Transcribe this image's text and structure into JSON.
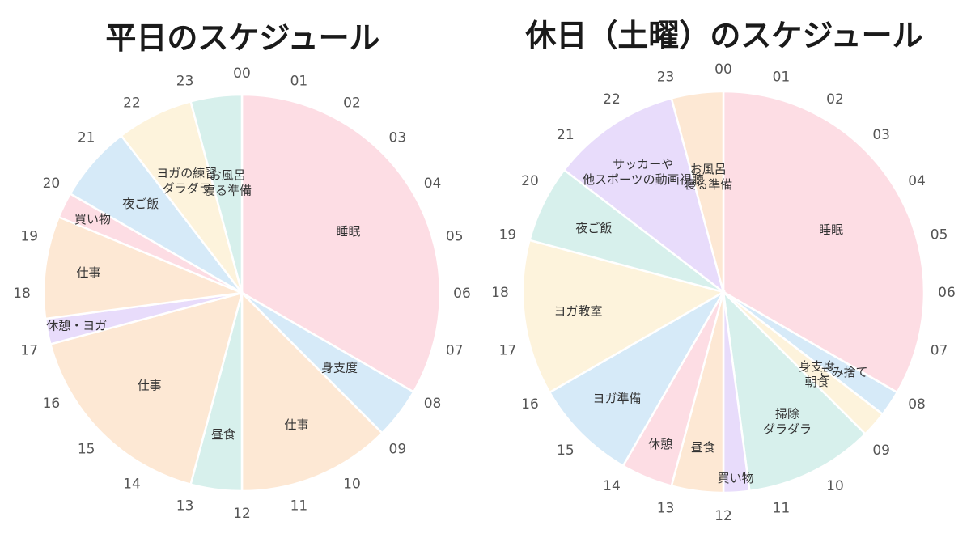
{
  "chart_data": [
    {
      "type": "pie",
      "title": "平日のスケジュール",
      "hour_labels": [
        "00",
        "01",
        "02",
        "03",
        "04",
        "05",
        "06",
        "07",
        "08",
        "09",
        "10",
        "11",
        "12",
        "13",
        "14",
        "15",
        "16",
        "17",
        "18",
        "19",
        "20",
        "21",
        "22",
        "23"
      ],
      "slices": [
        {
          "label": "睡眠",
          "start": 0,
          "end": 8,
          "color": "#fddde4"
        },
        {
          "label": "身支度",
          "start": 8,
          "end": 9,
          "color": "#d6eaf8"
        },
        {
          "label": "仕事",
          "start": 9,
          "end": 12,
          "color": "#fde8d4"
        },
        {
          "label": "昼食",
          "start": 12,
          "end": 13,
          "color": "#d7f0ec"
        },
        {
          "label": "仕事",
          "start": 13,
          "end": 17,
          "color": "#fde8d4"
        },
        {
          "label": "休憩・ヨガ",
          "start": 17,
          "end": 17.5,
          "color": "#e8dcfb"
        },
        {
          "label": "仕事",
          "start": 17.5,
          "end": 19.5,
          "color": "#fde8d4"
        },
        {
          "label": "買い物",
          "start": 19.5,
          "end": 20,
          "color": "#fddde4"
        },
        {
          "label": "夜ご飯",
          "start": 20,
          "end": 21.5,
          "color": "#d6eaf8"
        },
        {
          "label": "ヨガの練習\nダラダラ",
          "start": 21.5,
          "end": 23,
          "color": "#fdf3dc"
        },
        {
          "label": "お風呂\n寝る準備",
          "start": 23,
          "end": 24,
          "color": "#d7f0ec"
        }
      ]
    },
    {
      "type": "pie",
      "title": "休日（土曜）のスケジュール",
      "hour_labels": [
        "00",
        "01",
        "02",
        "03",
        "04",
        "05",
        "06",
        "07",
        "08",
        "09",
        "10",
        "11",
        "12",
        "13",
        "14",
        "15",
        "16",
        "17",
        "18",
        "19",
        "20",
        "21",
        "22",
        "23"
      ],
      "slices": [
        {
          "label": "睡眠",
          "start": 0,
          "end": 8,
          "color": "#fddde4"
        },
        {
          "label": "ごみ捨て",
          "start": 8,
          "end": 8.5,
          "color": "#d6eaf8"
        },
        {
          "label": "身支度\n朝食",
          "start": 8.5,
          "end": 9,
          "color": "#fdf3dc"
        },
        {
          "label": "掃除\nダラダラ",
          "start": 9,
          "end": 11.5,
          "color": "#d7f0ec"
        },
        {
          "label": "買い物",
          "start": 11.5,
          "end": 12,
          "color": "#e8dcfb"
        },
        {
          "label": "昼食",
          "start": 12,
          "end": 13,
          "color": "#fde8d4"
        },
        {
          "label": "休憩",
          "start": 13,
          "end": 14,
          "color": "#fddde4"
        },
        {
          "label": "ヨガ準備",
          "start": 14,
          "end": 16,
          "color": "#d6eaf8"
        },
        {
          "label": "ヨガ教室",
          "start": 16,
          "end": 19,
          "color": "#fdf3dc"
        },
        {
          "label": "夜ご飯",
          "start": 19,
          "end": 20.5,
          "color": "#d7f0ec"
        },
        {
          "label": "サッカーや\n他スポーツの動画視聴",
          "start": 20.5,
          "end": 23,
          "color": "#e8dcfb"
        },
        {
          "label": "お風呂\n寝る準備",
          "start": 23,
          "end": 24,
          "color": "#fde8d4"
        }
      ]
    }
  ]
}
